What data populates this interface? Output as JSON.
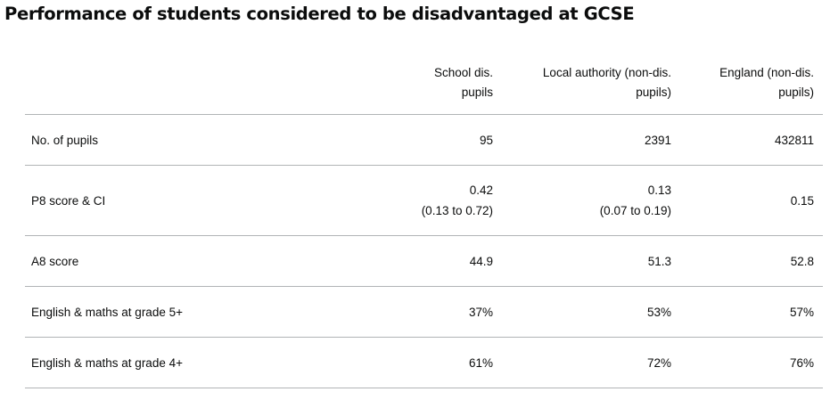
{
  "title": "Performance of students considered to be disadvantaged at GCSE",
  "table": {
    "columns": [
      {
        "line1": "School dis.",
        "line2": "pupils"
      },
      {
        "line1": "Local authority (non-dis.",
        "line2": "pupils)"
      },
      {
        "line1": "England (non-dis.",
        "line2": "pupils)"
      }
    ],
    "rows": [
      {
        "label": "No. of pupils",
        "school": "95",
        "la": "2391",
        "england": "432811"
      },
      {
        "label": "P8 score & CI",
        "school": "0.42",
        "school_ci": "(0.13 to 0.72)",
        "la": "0.13",
        "la_ci": "(0.07 to 0.19)",
        "england": "0.15"
      },
      {
        "label": "A8 score",
        "school": "44.9",
        "la": "51.3",
        "england": "52.8"
      },
      {
        "label": "English & maths at grade 5+",
        "school": "37%",
        "la": "53%",
        "england": "57%"
      },
      {
        "label": "English & maths at grade 4+",
        "school": "61%",
        "la": "72%",
        "england": "76%"
      }
    ]
  }
}
